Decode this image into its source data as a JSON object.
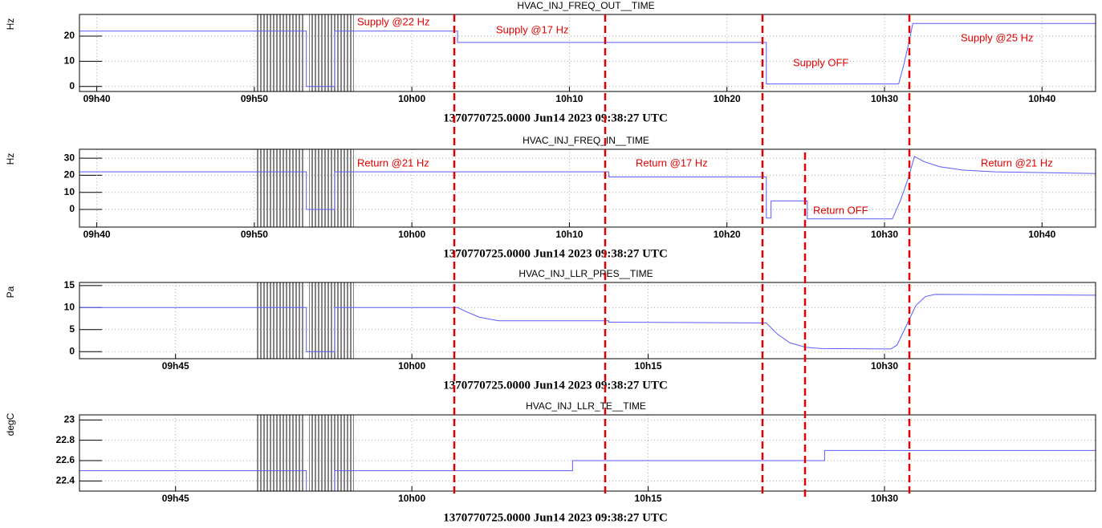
{
  "chart_data": [
    {
      "type": "line",
      "title": "HVAC_INJ_FREQ_OUT__TIME",
      "y_label": "Hz",
      "x_label": "1370770725.0000 Jun14 2023 09:38:27 UTC",
      "xlim": [
        578.9,
        643.4
      ],
      "ylim": [
        -2,
        28.6
      ],
      "xticks": [
        {
          "value": 580,
          "label": "09h40"
        },
        {
          "value": 590,
          "label": "09h50"
        },
        {
          "value": 600,
          "label": "10h00"
        },
        {
          "value": 610,
          "label": "10h10"
        },
        {
          "value": 620,
          "label": "10h20"
        },
        {
          "value": 630,
          "label": "10h30"
        },
        {
          "value": 640,
          "label": "10h40"
        }
      ],
      "yticks": [
        0,
        10,
        20
      ],
      "grid": true,
      "annotations": [
        "Supply  @22 Hz",
        "Supply @17 Hz",
        "Supply OFF",
        "Supply  @25 Hz"
      ],
      "series": [
        {
          "color": "#5b5bff",
          "x": [
            578.9,
            593.3,
            593.3,
            595.1,
            595.1,
            602.9,
            602.9,
            622.5,
            622.5,
            630.9,
            631.2,
            631.5,
            631.8,
            643.4
          ],
          "values": [
            22,
            22,
            0,
            0,
            22,
            22,
            17.5,
            17.5,
            1,
            1,
            8,
            16,
            25,
            25
          ]
        }
      ]
    },
    {
      "type": "line",
      "title": "HVAC_INJ_FREQ_IN__TIME",
      "y_label": "Hz",
      "x_label": "1370770725.0000 Jun14 2023 09:38:27 UTC",
      "xlim": [
        578.9,
        643.4
      ],
      "ylim": [
        -10.3,
        35.2
      ],
      "xticks": [
        {
          "value": 580,
          "label": "09h40"
        },
        {
          "value": 590,
          "label": "09h50"
        },
        {
          "value": 600,
          "label": "10h00"
        },
        {
          "value": 610,
          "label": "10h10"
        },
        {
          "value": 620,
          "label": "10h20"
        },
        {
          "value": 630,
          "label": "10h30"
        },
        {
          "value": 640,
          "label": "10h40"
        }
      ],
      "yticks": [
        0,
        10,
        20,
        30
      ],
      "grid": true,
      "annotations": [
        "Return @21 Hz",
        "Return @17 Hz",
        "Return OFF",
        "Return @21 Hz"
      ],
      "series": [
        {
          "color": "#5b5bff",
          "x": [
            578.9,
            593.3,
            593.3,
            595.1,
            595.1,
            612.5,
            612.5,
            622.5,
            622.5,
            622.8,
            622.8,
            625.1,
            625.1,
            630.5,
            631,
            631.5,
            631.9,
            632.5,
            633.5,
            635,
            637,
            643.4
          ],
          "values": [
            22,
            22,
            0,
            0,
            22,
            22,
            19,
            19,
            -5,
            -5,
            5,
            5,
            -5.5,
            -5.5,
            5,
            18,
            31,
            28,
            25,
            23,
            22,
            21
          ]
        }
      ]
    },
    {
      "type": "line",
      "title": "HVAC_INJ_LLR_PRES__TIME",
      "y_label": "Pa",
      "x_label": "1370770725.0000 Jun14 2023 09:38:27 UTC",
      "xlim": [
        578.9,
        643.4
      ],
      "ylim": [
        -1.6,
        15.7
      ],
      "xticks": [
        {
          "value": 585,
          "label": "09h45"
        },
        {
          "value": 600,
          "label": "10h00"
        },
        {
          "value": 615,
          "label": "10h15"
        },
        {
          "value": 630,
          "label": "10h30"
        }
      ],
      "yticks": [
        0,
        5,
        10,
        15
      ],
      "grid": true,
      "annotations": [],
      "series": [
        {
          "color": "#5b5bff",
          "x": [
            578.9,
            593.3,
            593.3,
            595.1,
            595.1,
            602.9,
            603.5,
            604.3,
            605.5,
            612.5,
            612.5,
            622.5,
            623.2,
            624,
            625,
            626,
            630.4,
            630.8,
            631.4,
            632,
            632.6,
            633.2,
            643.4
          ],
          "values": [
            10,
            10,
            0,
            0,
            10,
            10,
            9,
            7.8,
            7,
            7,
            6.7,
            6.5,
            4,
            2,
            1,
            0.7,
            0.6,
            1.5,
            6,
            10.5,
            12.5,
            13,
            12.8
          ]
        }
      ]
    },
    {
      "type": "line",
      "title": "HVAC_INJ_LLR_TE__TIME",
      "y_label": "degC",
      "x_label": "1370770725.0000 Jun14 2023 09:38:27 UTC",
      "xlim": [
        578.9,
        643.4
      ],
      "ylim": [
        22.3,
        23.05
      ],
      "xticks": [
        {
          "value": 585,
          "label": "09h45"
        },
        {
          "value": 600,
          "label": "10h00"
        },
        {
          "value": 615,
          "label": "10h15"
        },
        {
          "value": 630,
          "label": "10h30"
        }
      ],
      "yticks": [
        22.4,
        22.6,
        22.8,
        23
      ],
      "grid": true,
      "annotations": [],
      "series": [
        {
          "color": "#5b5bff",
          "x": [
            578.9,
            593.3,
            593.3,
            595.1,
            595.1,
            610.2,
            610.2,
            626.2,
            626.2,
            643.4
          ],
          "values": [
            22.5,
            22.5,
            22.3,
            22.3,
            22.5,
            22.5,
            22.6,
            22.6,
            22.7,
            22.7
          ]
        }
      ]
    }
  ]
}
